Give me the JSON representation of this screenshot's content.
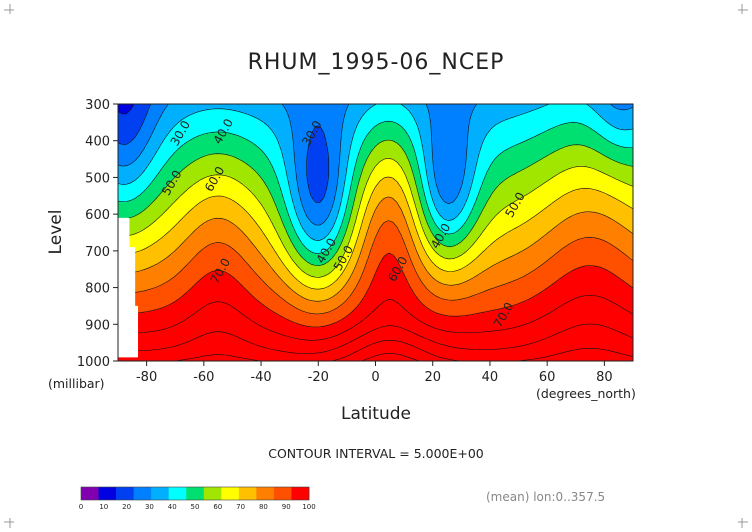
{
  "chart_data": {
    "type": "heatmap",
    "title": "RHUM_1995-06_NCEP",
    "xlabel": "Latitude",
    "x_units": "(degrees_north)",
    "ylabel": "Level",
    "y_units": "(millibar)",
    "xlim": [
      -90,
      90
    ],
    "ylim": [
      1000,
      300
    ],
    "x_ticks": [
      -80,
      -60,
      -40,
      -20,
      0,
      20,
      40,
      60,
      80
    ],
    "x_tick_labels": [
      "-80",
      "-60",
      "-40",
      "-20",
      "0",
      "20",
      "40",
      "60",
      "80"
    ],
    "y_ticks": [
      300,
      400,
      500,
      600,
      700,
      800,
      900,
      1000
    ],
    "y_tick_labels": [
      "300",
      "400",
      "500",
      "600",
      "700",
      "800",
      "900",
      "1000"
    ],
    "contour_interval_text": "CONTOUR INTERVAL = 5.000E+00",
    "footnote": "(mean) lon:0..357.5",
    "contour_labels": [
      {
        "text": "30.0",
        "lat": -67,
        "lev": 385
      },
      {
        "text": "40.0",
        "lat": -52,
        "lev": 380
      },
      {
        "text": "50.0",
        "lat": -70,
        "lev": 520
      },
      {
        "text": "60.0",
        "lat": -55,
        "lev": 510
      },
      {
        "text": "70.0",
        "lat": -53,
        "lev": 760
      },
      {
        "text": "30.0",
        "lat": -21,
        "lev": 385
      },
      {
        "text": "40.0",
        "lat": -16,
        "lev": 705
      },
      {
        "text": "50.0",
        "lat": -10,
        "lev": 725
      },
      {
        "text": "60.0",
        "lat": 9,
        "lev": 755
      },
      {
        "text": "40.0",
        "lat": 24,
        "lev": 665
      },
      {
        "text": "50.0",
        "lat": 50,
        "lev": 580
      },
      {
        "text": "70.0",
        "lat": 46,
        "lev": 880
      }
    ],
    "colorbar": {
      "bounds": [
        0,
        10,
        20,
        30,
        40,
        50,
        60,
        70,
        80,
        90,
        100
      ],
      "labels": [
        "0",
        "10",
        "20",
        "30",
        "40",
        "50",
        "60",
        "70",
        "80",
        "90",
        "100"
      ],
      "colors": [
        "#8000b0",
        "#0000e0",
        "#0040f0",
        "#0080ff",
        "#00b0ff",
        "#00ffff",
        "#00e070",
        "#a0e600",
        "#ffff00",
        "#ffc000",
        "#ff8000",
        "#ff5000",
        "#ff0000"
      ]
    },
    "levels": [
      10,
      20,
      25,
      30,
      35,
      40,
      45,
      50,
      55,
      60,
      65,
      70,
      75,
      80,
      85,
      90
    ]
  }
}
